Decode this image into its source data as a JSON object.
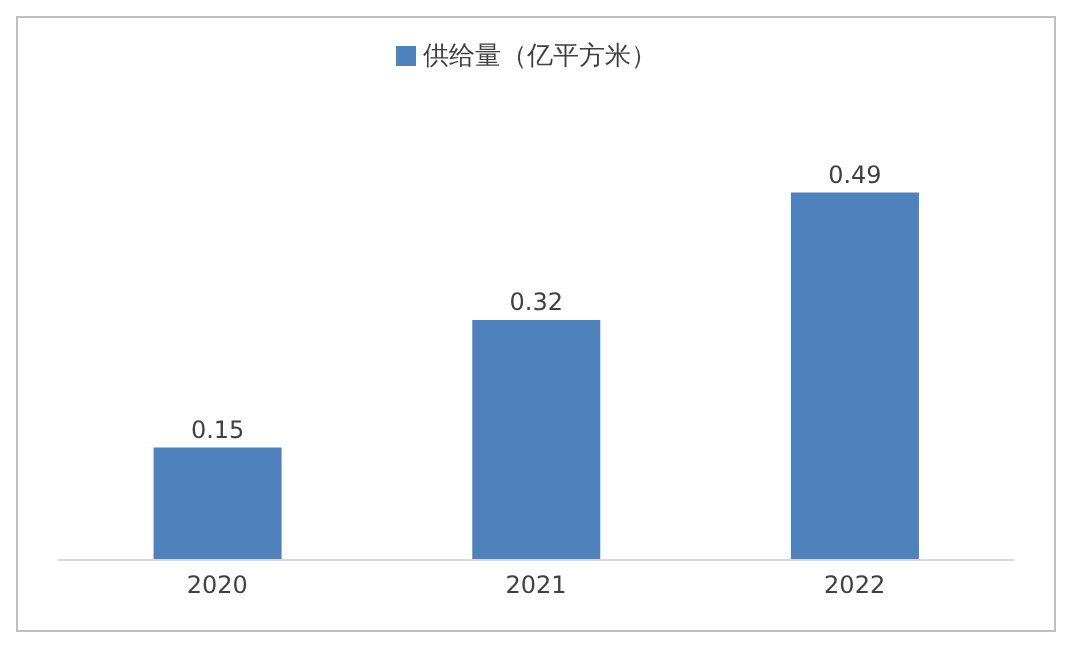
{
  "chart_data": {
    "type": "bar",
    "categories": [
      "2020",
      "2021",
      "2022"
    ],
    "series": [
      {
        "name": "供给量（亿平方米）",
        "color": "#4f81bd",
        "values": [
          0.15,
          0.32,
          0.49
        ]
      }
    ],
    "tick_labels": "x",
    "data_labels": true,
    "legend": "top"
  }
}
